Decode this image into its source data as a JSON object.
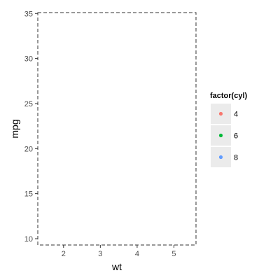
{
  "chart_data": {
    "type": "scatter",
    "title": "",
    "xlabel": "wt",
    "ylabel": "mpg",
    "xlim": [
      1.3,
      5.6
    ],
    "ylim": [
      9.3,
      35.1
    ],
    "x_ticks": [
      2,
      3,
      4,
      5
    ],
    "y_ticks": [
      10,
      15,
      20,
      25,
      30,
      35
    ],
    "grid": false,
    "panel_border": "dashed",
    "points": [],
    "legend": {
      "title": "factor(cyl)",
      "position": "right",
      "entries": [
        {
          "label": "4",
          "color": "#F8766D"
        },
        {
          "label": "6",
          "color": "#00BA38"
        },
        {
          "label": "8",
          "color": "#619CFF"
        }
      ]
    }
  }
}
